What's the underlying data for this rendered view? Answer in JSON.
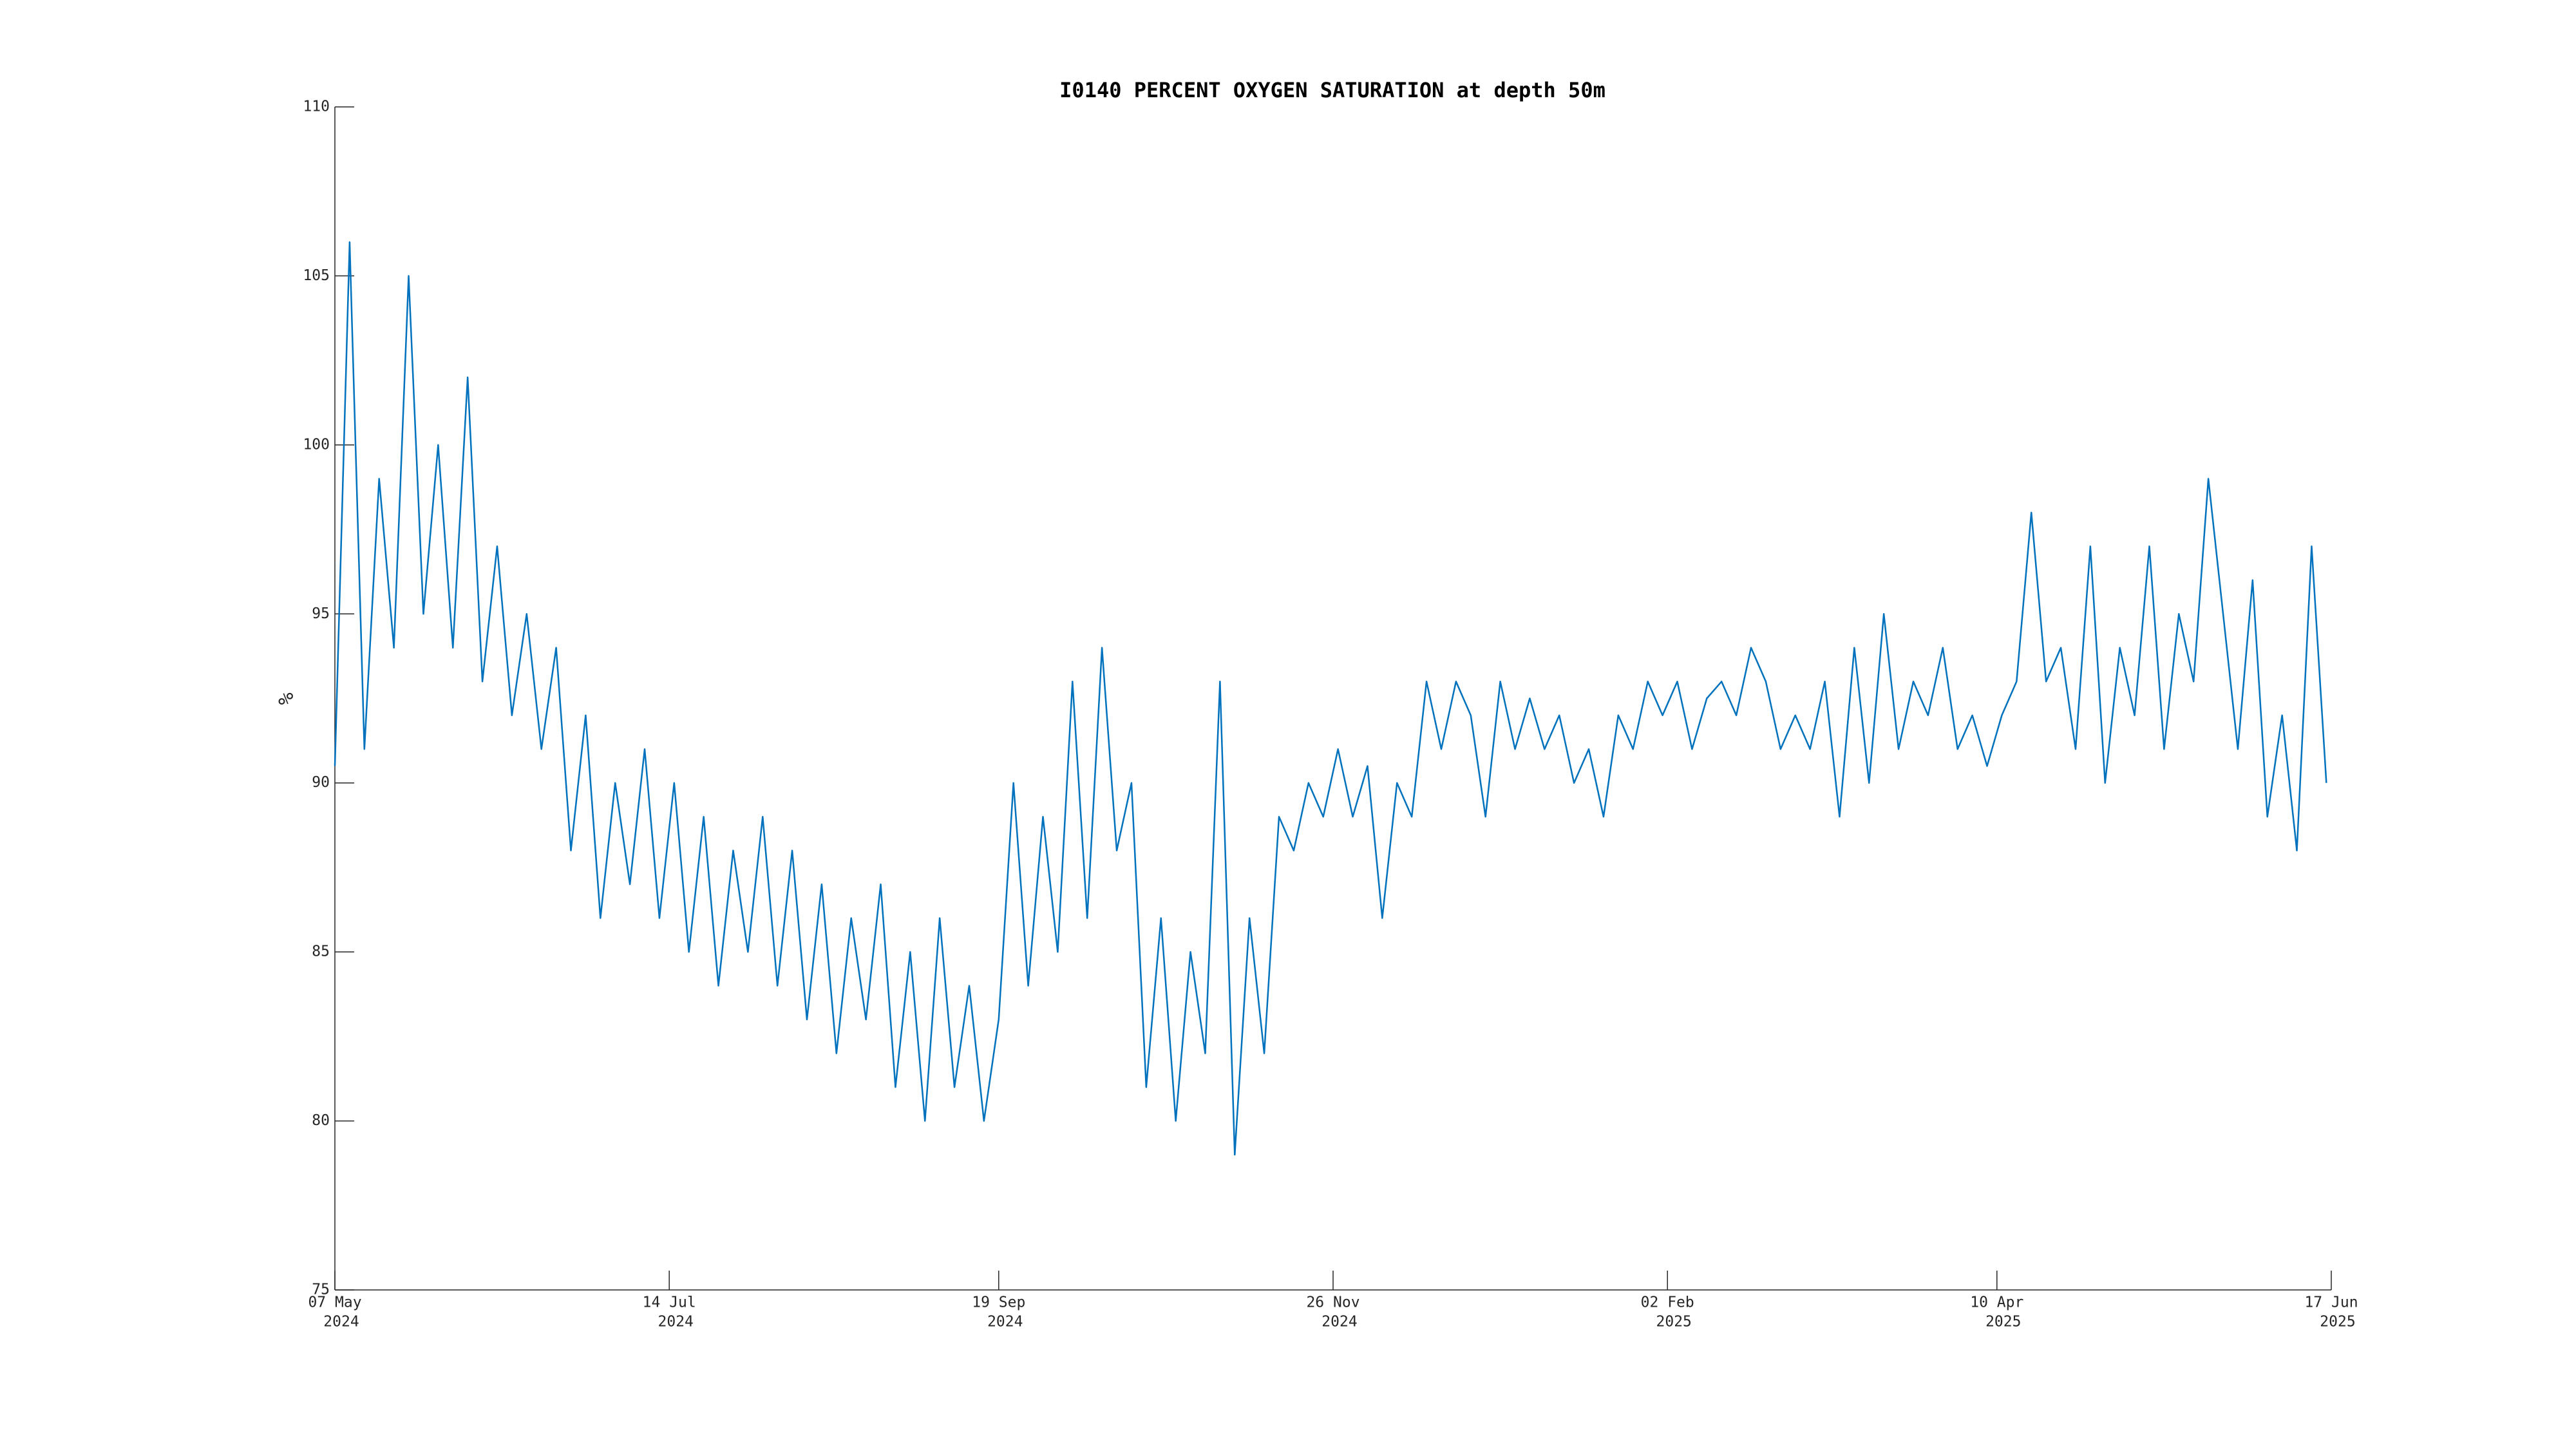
{
  "chart_data": {
    "type": "line",
    "title": "I0140 PERCENT OXYGEN SATURATION at depth 50m",
    "ylabel": "%",
    "color": "#0072bd",
    "grid": false,
    "xlim": [
      "2024-05-07",
      "2025-06-17"
    ],
    "ylim": [
      75,
      110
    ],
    "yticks": [
      75,
      80,
      85,
      90,
      95,
      100,
      105,
      110
    ],
    "xticks": [
      {
        "value": "2024-05-07",
        "label": [
          "07 May",
          "2024"
        ]
      },
      {
        "value": "2024-07-14",
        "label": [
          "14 Jul",
          "2024"
        ]
      },
      {
        "value": "2024-09-19",
        "label": [
          "19 Sep",
          "2024"
        ]
      },
      {
        "value": "2024-11-26",
        "label": [
          "26 Nov",
          "2024"
        ]
      },
      {
        "value": "2025-02-02",
        "label": [
          "02 Feb",
          "2025"
        ]
      },
      {
        "value": "2025-04-10",
        "label": [
          "10 Apr",
          "2025"
        ]
      },
      {
        "value": "2025-06-17",
        "label": [
          "17 Jun",
          "2025"
        ]
      }
    ],
    "x": [
      "2024-05-07",
      "2024-05-10",
      "2024-05-13",
      "2024-05-16",
      "2024-05-19",
      "2024-05-22",
      "2024-05-25",
      "2024-05-28",
      "2024-05-31",
      "2024-06-03",
      "2024-06-06",
      "2024-06-09",
      "2024-06-12",
      "2024-06-15",
      "2024-06-18",
      "2024-06-21",
      "2024-06-24",
      "2024-06-27",
      "2024-06-30",
      "2024-07-03",
      "2024-07-06",
      "2024-07-09",
      "2024-07-12",
      "2024-07-15",
      "2024-07-18",
      "2024-07-21",
      "2024-07-24",
      "2024-07-27",
      "2024-07-30",
      "2024-08-02",
      "2024-08-05",
      "2024-08-08",
      "2024-08-11",
      "2024-08-14",
      "2024-08-17",
      "2024-08-20",
      "2024-08-23",
      "2024-08-26",
      "2024-08-29",
      "2024-09-01",
      "2024-09-04",
      "2024-09-07",
      "2024-09-10",
      "2024-09-13",
      "2024-09-16",
      "2024-09-19",
      "2024-09-22",
      "2024-09-25",
      "2024-09-28",
      "2024-10-01",
      "2024-10-04",
      "2024-10-07",
      "2024-10-10",
      "2024-10-13",
      "2024-10-16",
      "2024-10-19",
      "2024-10-22",
      "2024-10-25",
      "2024-10-28",
      "2024-10-31",
      "2024-11-03",
      "2024-11-06",
      "2024-11-09",
      "2024-11-12",
      "2024-11-15",
      "2024-11-18",
      "2024-11-21",
      "2024-11-24",
      "2024-11-27",
      "2024-11-30",
      "2024-12-03",
      "2024-12-06",
      "2024-12-09",
      "2024-12-12",
      "2024-12-15",
      "2024-12-18",
      "2024-12-21",
      "2024-12-24",
      "2024-12-27",
      "2024-12-30",
      "2025-01-02",
      "2025-01-05",
      "2025-01-08",
      "2025-01-11",
      "2025-01-14",
      "2025-01-17",
      "2025-01-20",
      "2025-01-23",
      "2025-01-26",
      "2025-01-29",
      "2025-02-01",
      "2025-02-04",
      "2025-02-07",
      "2025-02-10",
      "2025-02-13",
      "2025-02-16",
      "2025-02-19",
      "2025-02-22",
      "2025-02-25",
      "2025-02-28",
      "2025-03-03",
      "2025-03-06",
      "2025-03-09",
      "2025-03-12",
      "2025-03-15",
      "2025-03-18",
      "2025-03-21",
      "2025-03-24",
      "2025-03-27",
      "2025-03-30",
      "2025-04-02",
      "2025-04-05",
      "2025-04-08",
      "2025-04-11",
      "2025-04-14",
      "2025-04-17",
      "2025-04-20",
      "2025-04-23",
      "2025-04-26",
      "2025-04-29",
      "2025-05-02",
      "2025-05-05",
      "2025-05-08",
      "2025-05-11",
      "2025-05-14",
      "2025-05-17",
      "2025-05-20",
      "2025-05-23",
      "2025-05-26",
      "2025-05-29",
      "2025-06-01",
      "2025-06-04",
      "2025-06-07",
      "2025-06-10",
      "2025-06-13",
      "2025-06-16"
    ],
    "values": [
      90.5,
      106,
      91,
      99,
      94,
      105,
      95,
      100,
      94,
      102,
      93,
      97,
      92,
      95,
      91,
      94,
      88,
      92,
      86,
      90,
      87,
      91,
      86,
      90,
      85,
      89,
      84,
      88,
      85,
      89,
      84,
      88,
      83,
      87,
      82,
      86,
      83,
      87,
      81,
      85,
      80,
      86,
      81,
      84,
      80,
      83,
      90,
      84,
      89,
      85,
      93,
      86,
      94,
      88,
      90,
      81,
      86,
      80,
      85,
      82,
      93,
      79,
      86,
      82,
      89,
      88,
      90,
      89,
      91,
      89,
      90.5,
      86,
      90,
      89,
      93,
      91,
      93,
      92,
      89,
      93,
      91,
      92.5,
      91,
      92,
      90,
      91,
      89,
      92,
      91,
      93,
      92,
      93,
      91,
      92.5,
      93,
      92,
      94,
      93,
      91,
      92,
      91,
      93,
      89,
      94,
      90,
      95,
      91,
      93,
      92,
      94,
      91,
      92,
      90.5,
      92,
      93,
      98,
      93,
      94,
      91,
      97,
      90,
      94,
      92,
      97,
      91,
      95,
      93,
      99,
      95,
      91,
      96,
      89,
      92,
      88,
      97,
      90
    ]
  }
}
